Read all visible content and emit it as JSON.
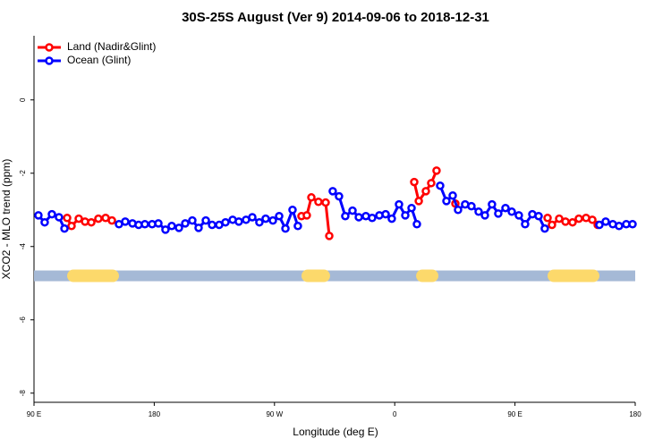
{
  "chart_data": {
    "type": "line",
    "title": "30S-25S August (Ver 9)   2014-09-06 to 2018-12-31",
    "xlabel": "Longitude (deg E)",
    "ylabel": "XCO2 - MLO trend (ppm)",
    "xlim": [
      90,
      540
    ],
    "ylim": [
      -8.25,
      1.75
    ],
    "xticks": [
      {
        "value": 90,
        "label": "90 E"
      },
      {
        "value": 180,
        "label": "180"
      },
      {
        "value": 270,
        "label": "90 W"
      },
      {
        "value": 360,
        "label": "0"
      },
      {
        "value": 450,
        "label": "90 E"
      },
      {
        "value": 540,
        "label": "180"
      }
    ],
    "yticks": [
      -8,
      -6,
      -4,
      -2,
      0
    ],
    "legend": "top-left",
    "series": [
      {
        "name": "Land (Nadir&Glint)",
        "color": "#ff0000",
        "x": [
          114.8,
          118.1,
          123.5,
          128.2,
          132.9,
          138.2,
          143.6,
          148.3,
          218.6,
          290.2,
          294.2,
          297.6,
          302.9,
          308.3,
          311.0,
          342.4,
          374.6,
          378.0,
          383.3,
          387.3,
          391.3,
          399.4,
          405.4,
          439.5,
          474.4,
          477.7,
          483.1,
          487.8,
          493.1,
          497.8,
          503.2,
          507.9,
          511.9
        ],
        "values": [
          -3.22,
          -3.44,
          -3.24,
          -3.32,
          -3.34,
          -3.24,
          -3.22,
          -3.29,
          null,
          -3.17,
          -3.15,
          -2.66,
          -2.78,
          -2.8,
          -3.71,
          null,
          -2.24,
          -2.76,
          -2.49,
          -2.27,
          -1.93,
          null,
          -2.83,
          null,
          -3.22,
          -3.41,
          -3.24,
          -3.32,
          -3.34,
          -3.24,
          -3.22,
          -3.27,
          -3.41
        ]
      },
      {
        "name": "Ocean (Glint)",
        "color": "#0000ff",
        "x": [
          93.3,
          98.0,
          103.4,
          108.7,
          112.8,
          143.6,
          153.6,
          158.3,
          163.7,
          168.3,
          173.0,
          178.4,
          183.1,
          188.4,
          193.1,
          198.5,
          203.2,
          208.5,
          213.2,
          218.6,
          223.3,
          228.6,
          233.3,
          238.7,
          243.3,
          248.7,
          253.4,
          258.7,
          263.4,
          268.8,
          273.5,
          278.2,
          283.5,
          287.5,
          298.9,
          313.6,
          318.3,
          323.0,
          328.4,
          333.1,
          338.4,
          343.1,
          348.5,
          353.2,
          357.8,
          363.2,
          367.9,
          372.6,
          376.6,
          386.0,
          394.0,
          398.7,
          403.4,
          407.4,
          412.7,
          417.4,
          422.8,
          427.5,
          432.8,
          437.5,
          442.9,
          447.6,
          452.9,
          457.6,
          463.0,
          467.7,
          472.3,
          493.1,
          513.2,
          517.9,
          523.2,
          527.9,
          533.3,
          538.0
        ],
        "values": [
          -3.15,
          -3.34,
          -3.12,
          -3.2,
          -3.51,
          null,
          -3.39,
          -3.32,
          -3.37,
          -3.41,
          -3.39,
          -3.39,
          -3.37,
          -3.54,
          -3.44,
          -3.49,
          -3.37,
          -3.29,
          -3.49,
          -3.29,
          -3.41,
          -3.41,
          -3.34,
          -3.27,
          -3.32,
          -3.27,
          -3.2,
          -3.34,
          -3.24,
          -3.29,
          -3.17,
          -3.51,
          -3.0,
          -3.44,
          null,
          -2.49,
          -2.63,
          -3.17,
          -3.02,
          -3.2,
          -3.17,
          -3.22,
          -3.15,
          -3.12,
          -3.24,
          -2.85,
          -3.15,
          -2.95,
          -3.39,
          null,
          -2.34,
          -2.76,
          -2.61,
          -3.0,
          -2.85,
          -2.9,
          -3.05,
          -3.15,
          -2.85,
          -3.1,
          -2.95,
          -3.05,
          -3.15,
          -3.39,
          -3.12,
          -3.17,
          -3.51,
          null,
          -3.41,
          -3.32,
          -3.39,
          -3.44,
          -3.39,
          -3.39
        ]
      }
    ],
    "land_band": {
      "y": -4.8,
      "color": "#a5b9d6",
      "land_color": "#fcd96b",
      "segments": [
        [
          114.8,
          153.6
        ],
        [
          290.2,
          311.6
        ],
        [
          376.0,
          392.7
        ],
        [
          474.4,
          513.2
        ]
      ]
    }
  }
}
